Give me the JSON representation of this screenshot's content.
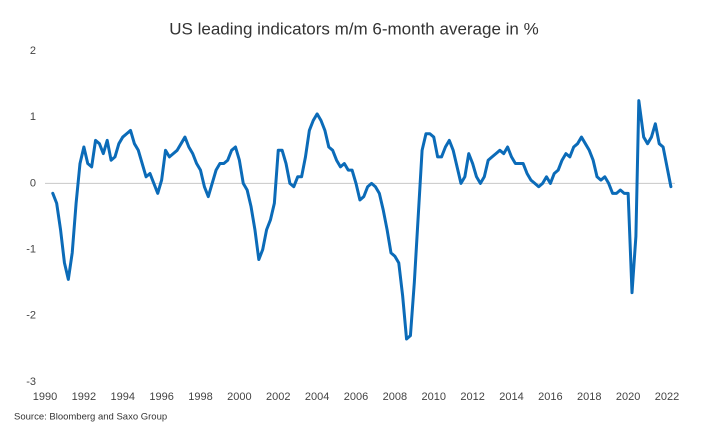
{
  "chart_data": {
    "type": "line",
    "title": "US leading indicators m/m 6-month average in %",
    "source": "Source: Bloomberg and Saxo Group",
    "x": [
      1990.4,
      1990.6,
      1990.8,
      1991.0,
      1991.2,
      1991.4,
      1991.6,
      1991.8,
      1992.0,
      1992.2,
      1992.4,
      1992.6,
      1992.8,
      1993.0,
      1993.2,
      1993.4,
      1993.6,
      1993.8,
      1994.0,
      1994.2,
      1994.4,
      1994.6,
      1994.8,
      1995.0,
      1995.2,
      1995.4,
      1995.6,
      1995.8,
      1996.0,
      1996.2,
      1996.4,
      1996.6,
      1996.8,
      1997.0,
      1997.2,
      1997.4,
      1997.6,
      1997.8,
      1998.0,
      1998.2,
      1998.4,
      1998.6,
      1998.8,
      1999.0,
      1999.2,
      1999.4,
      1999.6,
      1999.8,
      2000.0,
      2000.2,
      2000.4,
      2000.6,
      2000.8,
      2001.0,
      2001.2,
      2001.4,
      2001.6,
      2001.8,
      2002.0,
      2002.2,
      2002.4,
      2002.6,
      2002.8,
      2003.0,
      2003.2,
      2003.4,
      2003.6,
      2003.8,
      2004.0,
      2004.2,
      2004.4,
      2004.6,
      2004.8,
      2005.0,
      2005.2,
      2005.4,
      2005.6,
      2005.8,
      2006.0,
      2006.2,
      2006.4,
      2006.6,
      2006.8,
      2007.0,
      2007.2,
      2007.4,
      2007.6,
      2007.8,
      2008.0,
      2008.2,
      2008.4,
      2008.6,
      2008.8,
      2009.0,
      2009.2,
      2009.4,
      2009.6,
      2009.8,
      2010.0,
      2010.2,
      2010.4,
      2010.6,
      2010.8,
      2011.0,
      2011.2,
      2011.4,
      2011.6,
      2011.8,
      2012.0,
      2012.2,
      2012.4,
      2012.6,
      2012.8,
      2013.0,
      2013.2,
      2013.4,
      2013.6,
      2013.8,
      2014.0,
      2014.2,
      2014.4,
      2014.6,
      2014.8,
      2015.0,
      2015.2,
      2015.4,
      2015.6,
      2015.8,
      2016.0,
      2016.2,
      2016.4,
      2016.6,
      2016.8,
      2017.0,
      2017.2,
      2017.4,
      2017.6,
      2017.8,
      2018.0,
      2018.2,
      2018.4,
      2018.6,
      2018.8,
      2019.0,
      2019.2,
      2019.4,
      2019.6,
      2019.8,
      2020.0,
      2020.2,
      2020.4,
      2020.55,
      2020.8,
      2021.0,
      2021.2,
      2021.4,
      2021.6,
      2021.8,
      2022.0,
      2022.2
    ],
    "series": [
      {
        "color": "#0b6bb8",
        "values": [
          -0.15,
          -0.3,
          -0.7,
          -1.2,
          -1.45,
          -1.05,
          -0.3,
          0.3,
          0.55,
          0.3,
          0.25,
          0.65,
          0.6,
          0.45,
          0.65,
          0.35,
          0.4,
          0.6,
          0.7,
          0.75,
          0.8,
          0.6,
          0.5,
          0.3,
          0.1,
          0.15,
          0.0,
          -0.15,
          0.05,
          0.5,
          0.4,
          0.45,
          0.5,
          0.6,
          0.7,
          0.55,
          0.45,
          0.3,
          0.2,
          -0.05,
          -0.2,
          0.0,
          0.2,
          0.3,
          0.3,
          0.35,
          0.5,
          0.55,
          0.35,
          0.0,
          -0.1,
          -0.35,
          -0.7,
          -1.15,
          -1.0,
          -0.7,
          -0.55,
          -0.3,
          0.5,
          0.5,
          0.3,
          0.0,
          -0.05,
          0.1,
          0.1,
          0.4,
          0.8,
          0.95,
          1.05,
          0.95,
          0.8,
          0.55,
          0.5,
          0.35,
          0.25,
          0.3,
          0.2,
          0.2,
          0.0,
          -0.25,
          -0.2,
          -0.05,
          0.0,
          -0.05,
          -0.15,
          -0.4,
          -0.7,
          -1.05,
          -1.1,
          -1.2,
          -1.7,
          -2.35,
          -2.3,
          -1.5,
          -0.5,
          0.5,
          0.75,
          0.75,
          0.7,
          0.4,
          0.4,
          0.55,
          0.65,
          0.5,
          0.25,
          0.0,
          0.1,
          0.45,
          0.3,
          0.1,
          0.0,
          0.1,
          0.35,
          0.4,
          0.45,
          0.5,
          0.45,
          0.55,
          0.4,
          0.3,
          0.3,
          0.3,
          0.15,
          0.05,
          0.0,
          -0.05,
          0.0,
          0.1,
          0.0,
          0.15,
          0.2,
          0.35,
          0.45,
          0.4,
          0.55,
          0.6,
          0.7,
          0.6,
          0.5,
          0.35,
          0.1,
          0.05,
          0.1,
          0.0,
          -0.15,
          -0.15,
          -0.1,
          -0.15,
          -0.15,
          -1.65,
          -0.8,
          1.25,
          0.7,
          0.6,
          0.7,
          0.9,
          0.6,
          0.55,
          0.25,
          -0.05
        ]
      }
    ],
    "xlim": [
      1990,
      2022
    ],
    "xticks": [
      1990,
      1992,
      1994,
      1996,
      1998,
      2000,
      2002,
      2004,
      2006,
      2008,
      2010,
      2012,
      2014,
      2016,
      2018,
      2020,
      2022
    ],
    "ylim": [
      -3,
      2
    ],
    "yticks": [
      -3,
      -2,
      -1,
      0,
      1,
      2
    ]
  }
}
